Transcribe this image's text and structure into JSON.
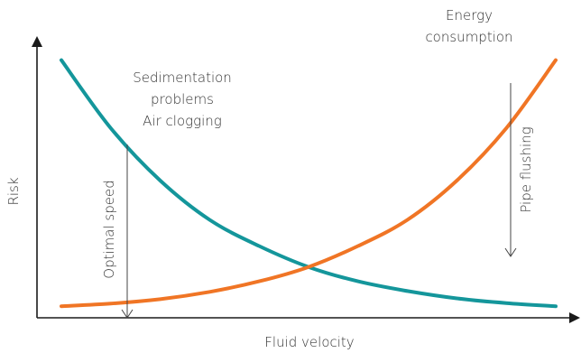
{
  "chart_data": {
    "type": "line",
    "xlabel": "Fluid velocity",
    "ylabel": "Risk",
    "xlim": [
      0,
      1
    ],
    "ylim": [
      0,
      1
    ],
    "grid": false,
    "series": [
      {
        "color": "#14969b",
        "x": [
          0.0,
          0.1,
          0.2,
          0.3,
          0.4,
          0.5,
          0.6,
          0.7,
          0.8,
          0.9,
          1.0
        ],
        "y": [
          0.96,
          0.7,
          0.5,
          0.35,
          0.25,
          0.17,
          0.115,
          0.078,
          0.05,
          0.032,
          0.02
        ]
      },
      {
        "color": "#f07525",
        "x": [
          0.0,
          0.1,
          0.2,
          0.3,
          0.4,
          0.5,
          0.6,
          0.7,
          0.8,
          0.9,
          1.0
        ],
        "y": [
          0.02,
          0.03,
          0.047,
          0.075,
          0.115,
          0.17,
          0.25,
          0.35,
          0.5,
          0.7,
          0.96
        ]
      }
    ],
    "annotations": [
      {
        "name": "sedimentation",
        "lines": [
          "Sedimentation",
          "problems",
          "Air clogging"
        ]
      },
      {
        "name": "energy",
        "lines": [
          "Energy",
          "consumption"
        ]
      },
      {
        "name": "optimal",
        "text": "Optimal speed",
        "x": 0.13
      },
      {
        "name": "flushing",
        "text": "Pipe flushing",
        "x": 0.93
      }
    ]
  }
}
